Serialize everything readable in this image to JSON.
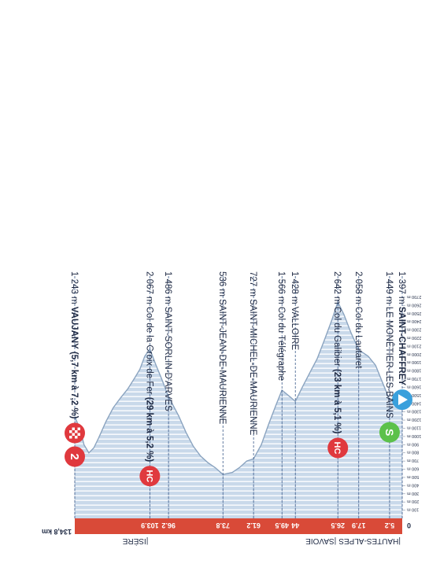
{
  "colors": {
    "profile_fill": "#c9d9ea",
    "profile_stripe": "#ffffff",
    "profile_edge": "#8aa3bf",
    "distance_bar": "#d94a38",
    "leader_line": "#3b5a8a",
    "text": "#1f2a44",
    "badge_red": "#e0393e",
    "badge_blue": "#3aa0dc",
    "badge_green": "#5cc14a"
  },
  "chart_data": {
    "type": "area",
    "orientation": "rotated-180",
    "x_unit": "km",
    "y_unit": "m",
    "ylim": [
      0,
      2700
    ],
    "xlim": [
      0,
      134.8
    ],
    "y_ticks": [
      100,
      200,
      300,
      400,
      500,
      600,
      700,
      800,
      900,
      1000,
      1100,
      1200,
      1300,
      1400,
      1500,
      1600,
      1700,
      1800,
      1900,
      2000,
      2100,
      2200,
      2300,
      2400,
      2500,
      2600,
      2700
    ],
    "y_tick_labels": [
      "100 m",
      "200 m",
      "300 m",
      "400 m",
      "500 m",
      "600 m",
      "700 m",
      "800 m",
      "900 m",
      "1000 m",
      "1100 m",
      "1200 m",
      "1300 m",
      "1400 m",
      "1500 m",
      "1600 m",
      "1700 m",
      "1800 m",
      "1900 m",
      "2000 m",
      "2100 m",
      "2200 m",
      "2300 m",
      "2400 m",
      "2500 m",
      "2600 m",
      "2700 m"
    ],
    "x_zero_label": "0",
    "total_distance_label": "134,8 km",
    "profile": [
      {
        "x": 0,
        "y": 1397
      },
      {
        "x": 2.5,
        "y": 1410
      },
      {
        "x": 5.2,
        "y": 1449
      },
      {
        "x": 8,
        "y": 1650
      },
      {
        "x": 11,
        "y": 1870
      },
      {
        "x": 14,
        "y": 1980
      },
      {
        "x": 17.9,
        "y": 2058
      },
      {
        "x": 21,
        "y": 2260
      },
      {
        "x": 24,
        "y": 2490
      },
      {
        "x": 26.5,
        "y": 2642
      },
      {
        "x": 29,
        "y": 2420
      },
      {
        "x": 32,
        "y": 2180
      },
      {
        "x": 35,
        "y": 1950
      },
      {
        "x": 38,
        "y": 1780
      },
      {
        "x": 41,
        "y": 1610
      },
      {
        "x": 44,
        "y": 1428
      },
      {
        "x": 46,
        "y": 1480
      },
      {
        "x": 49.5,
        "y": 1566
      },
      {
        "x": 52,
        "y": 1380
      },
      {
        "x": 55,
        "y": 1150
      },
      {
        "x": 58,
        "y": 900
      },
      {
        "x": 61.2,
        "y": 727
      },
      {
        "x": 64,
        "y": 700
      },
      {
        "x": 67,
        "y": 620
      },
      {
        "x": 70,
        "y": 560
      },
      {
        "x": 73.8,
        "y": 536
      },
      {
        "x": 77,
        "y": 620
      },
      {
        "x": 80,
        "y": 680
      },
      {
        "x": 83,
        "y": 760
      },
      {
        "x": 86,
        "y": 880
      },
      {
        "x": 89,
        "y": 1050
      },
      {
        "x": 92,
        "y": 1250
      },
      {
        "x": 96.2,
        "y": 1486
      },
      {
        "x": 99,
        "y": 1700
      },
      {
        "x": 101.5,
        "y": 1880
      },
      {
        "x": 103.9,
        "y": 2067
      },
      {
        "x": 106,
        "y": 1980
      },
      {
        "x": 108,
        "y": 1820
      },
      {
        "x": 110,
        "y": 1720
      },
      {
        "x": 113,
        "y": 1580
      },
      {
        "x": 116,
        "y": 1470
      },
      {
        "x": 119,
        "y": 1350
      },
      {
        "x": 122,
        "y": 1180
      },
      {
        "x": 125,
        "y": 980
      },
      {
        "x": 127,
        "y": 860
      },
      {
        "x": 129,
        "y": 800
      },
      {
        "x": 131,
        "y": 900
      },
      {
        "x": 132.5,
        "y": 1080
      },
      {
        "x": 134.8,
        "y": 1243
      }
    ],
    "km_markers": [
      {
        "km": 5.2,
        "label": "5.2"
      },
      {
        "km": 17.9,
        "label": "17.9"
      },
      {
        "km": 26.5,
        "label": "26.5"
      },
      {
        "km": 44,
        "label": "44"
      },
      {
        "km": 49.5,
        "label": "49.5"
      },
      {
        "km": 61.2,
        "label": "61.2"
      },
      {
        "km": 73.8,
        "label": "73.8"
      },
      {
        "km": 96.2,
        "label": "96.2"
      },
      {
        "km": 103.9,
        "label": "103.9"
      }
    ],
    "regions": [
      {
        "km": 0,
        "label": "|HAUTES-ALPES"
      },
      {
        "km": 26.5,
        "label": "|SAVOIE"
      },
      {
        "km": 103.9,
        "label": "|ISÈRE"
      }
    ],
    "waypoints": [
      {
        "km": 0,
        "alt_label": "1 397 m",
        "name": "SAINT-CHAFFREY",
        "detail": "",
        "bold": true,
        "badge": "start",
        "badge_text": ""
      },
      {
        "km": 5.2,
        "alt_label": "1 449 m",
        "name": "LE MONÊTIER-LES-BAINS",
        "detail": "",
        "bold": false,
        "badge": "sprint",
        "badge_text": "S"
      },
      {
        "km": 17.9,
        "alt_label": "2 058 m",
        "name": "Col du Lautaret",
        "detail": "",
        "bold": false,
        "badge": "",
        "badge_text": ""
      },
      {
        "km": 26.5,
        "alt_label": "2 642 m",
        "name": "Col du Galibier",
        "detail": "(23 km à 5,1 %)",
        "bold": false,
        "badge": "hc",
        "badge_text": "HC"
      },
      {
        "km": 44,
        "alt_label": "1 428 m",
        "name": "VALLOIRE",
        "detail": "",
        "bold": false,
        "badge": "",
        "badge_text": ""
      },
      {
        "km": 49.5,
        "alt_label": "1 566 m",
        "name": "Col du Télégraphe",
        "detail": "",
        "bold": false,
        "badge": "",
        "badge_text": ""
      },
      {
        "km": 61.2,
        "alt_label": "727 m",
        "name": "SAINT-MICHEL-DE-MAURIENNE",
        "detail": "",
        "bold": false,
        "badge": "",
        "badge_text": ""
      },
      {
        "km": 73.8,
        "alt_label": "536 m",
        "name": "SAINT-JEAN-DE-MAURIENNE",
        "detail": "",
        "bold": false,
        "badge": "",
        "badge_text": ""
      },
      {
        "km": 96.2,
        "alt_label": "1 486 m",
        "name": "SAINT-SORLIN-D'ARVES",
        "detail": "",
        "bold": false,
        "badge": "",
        "badge_text": ""
      },
      {
        "km": 103.9,
        "alt_label": "2 067 m",
        "name": "Col de la Croix de Fer",
        "detail": "(29 km à 5,2 %)",
        "bold": false,
        "badge": "hc",
        "badge_text": "HC"
      },
      {
        "km": 134.8,
        "alt_label": "1 243 m",
        "name": "VAUJANY",
        "detail": "(5,7 km à 7,2 %)",
        "bold": true,
        "badge": "finish-cat2",
        "badge_text": "2"
      }
    ]
  }
}
